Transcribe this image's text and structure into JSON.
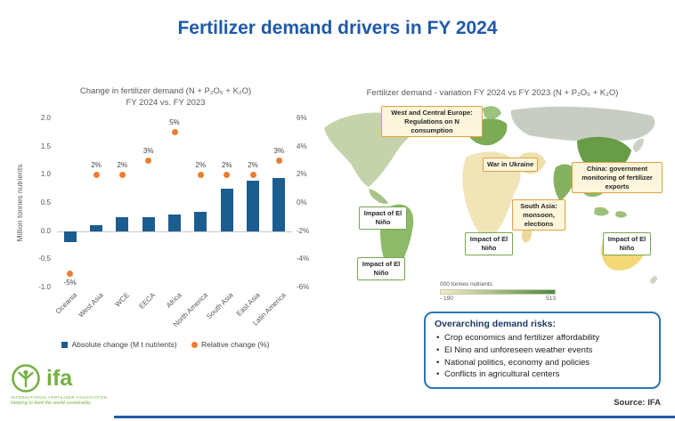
{
  "title": "Fertilizer demand drivers in FY 2024",
  "colors": {
    "accent_blue": "#1f5aa8",
    "bar_blue": "#1c5d90",
    "dot_orange": "#ed7d31",
    "risk_border": "#2e74b5",
    "logo_green": "#76b043",
    "map_low": "#f5edc4",
    "map_high": "#4c8a3c"
  },
  "chart": {
    "title_line1": "Change in fertilizer demand (N + P₂O₅ + K₂O)",
    "title_line2": "FY 2024 vs. FY 2023",
    "y_axis_label": "Million tonnes nutrients",
    "legend_bar": "Absolute change (M t nutrients)",
    "legend_dot": "Relative change (%)"
  },
  "chart_data": {
    "type": "bar",
    "title": "Change in fertilizer demand (N + P₂O₅ + K₂O) FY 2024 vs. FY 2023",
    "categories": [
      "Oceania",
      "West Asia",
      "WCE",
      "EECA",
      "Africa",
      "North America",
      "South Asia",
      "East Asia",
      "Latin America"
    ],
    "series": [
      {
        "name": "Absolute change (M t nutrients)",
        "type": "bar",
        "axis": "left",
        "values": [
          -0.2,
          0.1,
          0.25,
          0.25,
          0.3,
          0.35,
          0.75,
          0.9,
          0.95
        ]
      },
      {
        "name": "Relative change (%)",
        "type": "scatter",
        "axis": "right",
        "values": [
          -5,
          2,
          2,
          3,
          5,
          2,
          2,
          2,
          3
        ],
        "labels": [
          "-5%",
          "2%",
          "2%",
          "3%",
          "5%",
          "2%",
          "2%",
          "2%",
          "3%"
        ]
      }
    ],
    "left_axis": {
      "min": -1.0,
      "max": 2.0,
      "tick_values": [
        2.0,
        1.5,
        1.0,
        0.5,
        0.0,
        -0.5,
        -1.0
      ],
      "tick_labels": [
        "2.0",
        "1.5",
        "1.0",
        "0.5",
        "0.0",
        "-0.5",
        "-1.0"
      ]
    },
    "right_axis": {
      "min": -6,
      "max": 6,
      "tick_values": [
        6,
        4,
        2,
        0,
        -2,
        -4,
        -6
      ],
      "tick_labels": [
        "6%",
        "4%",
        "2%",
        "0%",
        "-2%",
        "-4%",
        "-6%"
      ]
    },
    "grid": false,
    "legend_position": "bottom"
  },
  "map": {
    "title": "Fertilizer demand - variation FY 2024 vs FY 2023 (N + P₂O₅ + K₂O)",
    "callouts": {
      "europe": "West and Central Europe: Regulations on N consumption",
      "ukraine": "War in Ukraine",
      "china": "China: government monitoring of fertilizer exports",
      "south_asia": "South Asia: monsoon, elections",
      "nino_na": "Impact of El Niño",
      "nino_africa": "Impact of El Niño",
      "nino_aus": "Impact of El Niño",
      "nino_sa": "Impact of El Niño"
    },
    "legend": {
      "label": "000 tonnes nutrients",
      "min": "- 190",
      "max": "513"
    }
  },
  "risks": {
    "title": "Overarching demand risks:",
    "items": [
      "Crop economics and fertilizer affordability",
      "El Nino and unforeseen weather events",
      "National politics, economy and policies",
      "Conflicts in agricultural centers"
    ]
  },
  "source": "Source: IFA",
  "logo": {
    "text": "ifa",
    "subtext": "INTERNATIONAL FERTILIZER ASSOCIATION",
    "tagline": "Helping to feed the world sustainably"
  }
}
